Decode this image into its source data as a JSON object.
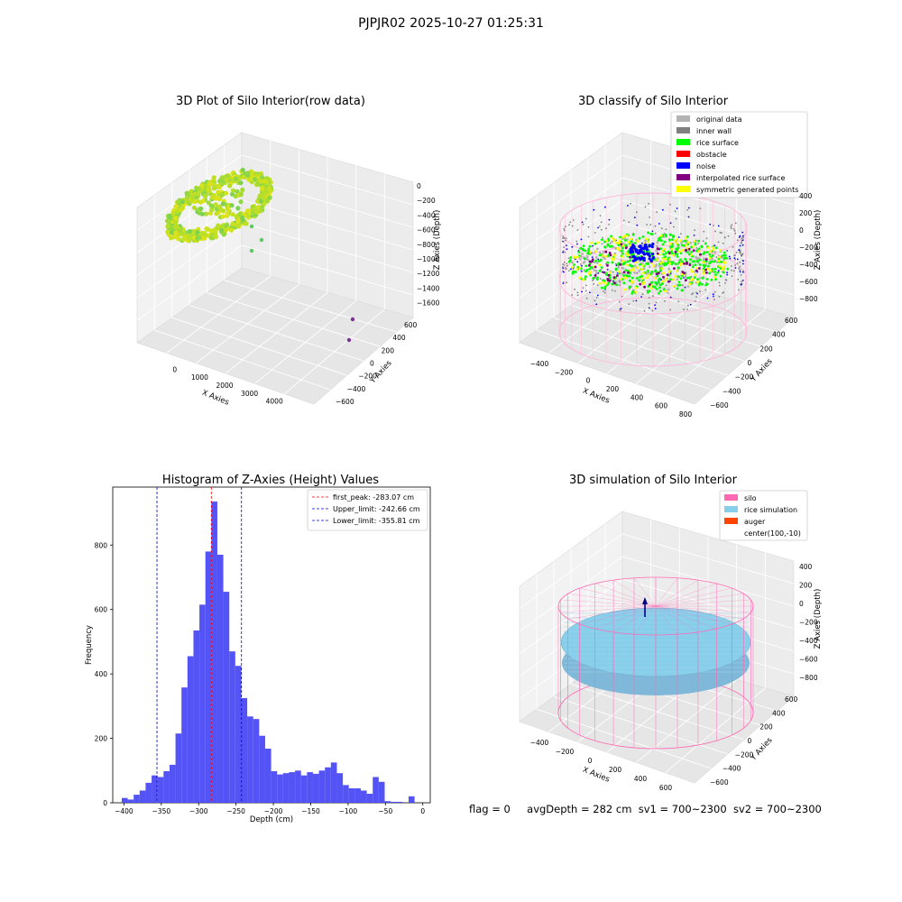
{
  "figure": {
    "suptitle": "PJPJR02 2025-10-27 01:25:31",
    "status": {
      "flag": "flag = 0",
      "avg_depth": "avgDepth = 282 cm",
      "sv1": "sv1 = 700~2300",
      "sv2": "sv2 = 700~2300"
    }
  },
  "colors": {
    "histogram_bar": "#4b4bf5",
    "first_peak_line": "#ff0000",
    "limit_line": "#0000cc",
    "grid": "#e0e0e0",
    "pane": "#f2f2f2",
    "silo": "#ff69b4",
    "rice_sim": "#87ceeb",
    "auger": "#ff4500",
    "original_data": "#b3b3b3",
    "inner_wall": "#808080",
    "rice_surface": "#00ff00",
    "obstacle": "#ff0000",
    "noise": "#0000ff",
    "interpolated": "#800080",
    "symmetric": "#ffff00"
  },
  "chart_data": [
    {
      "type": "scatter",
      "title": "3D Plot of Silo Interior(row data)",
      "xlabel": "X Axies",
      "ylabel": "Y Axies",
      "zlabel": "Z Axies (Depth)",
      "x_ticks": [
        "0",
        "1000",
        "2000",
        "3000",
        "4000"
      ],
      "y_ticks": [
        "−600",
        "−400",
        "−200",
        "0",
        "200",
        "400",
        "600"
      ],
      "z_ticks": [
        "0",
        "−200",
        "−400",
        "−600",
        "−800",
        "−1000",
        "−1200",
        "−1400",
        "−1600"
      ],
      "xlim": [
        -400,
        4300
      ],
      "ylim": [
        -700,
        700
      ],
      "zlim": [
        -1700,
        100
      ],
      "clusters": [
        {
          "name": "",
          "x_range": [
            -300,
            650
          ],
          "y_range": [
            -650,
            650
          ],
          "z_range": [
            -450,
            -150
          ],
          "colormap": "viridis-yellow"
        }
      ],
      "outliers": [
        {
          "x": 700,
          "y": 0,
          "z": -600
        },
        {
          "x": 800,
          "y": 100,
          "z": -700
        },
        {
          "x": 650,
          "y": -100,
          "z": -800
        },
        {
          "x": 4100,
          "y": 300,
          "z": -1450
        },
        {
          "x": 4100,
          "y": 150,
          "z": -1600
        }
      ]
    },
    {
      "type": "scatter",
      "title": "3D classify of Silo Interior",
      "xlabel": "X Axies",
      "ylabel": "Y Axies",
      "zlabel": "Z Axies (Depth)",
      "x_ticks": [
        "−400",
        "−200",
        "0",
        "200",
        "400",
        "600",
        "800"
      ],
      "y_ticks": [
        "−600",
        "−400",
        "−200",
        "0",
        "200",
        "400",
        "600"
      ],
      "z_ticks": [
        "−800",
        "−600",
        "−400",
        "−200",
        "0",
        "200",
        "400"
      ],
      "legend": {
        "position": "top-right",
        "entries": [
          {
            "label": "original data",
            "color": "#b3b3b3"
          },
          {
            "label": "inner wall",
            "color": "#808080"
          },
          {
            "label": "rice surface",
            "color": "#00ff00"
          },
          {
            "label": "obstacle",
            "color": "#ff0000"
          },
          {
            "label": "noise",
            "color": "#0000ff"
          },
          {
            "label": "interpolated rice surface",
            "color": "#800080"
          },
          {
            "label": "symmetric generated points",
            "color": "#ffff00"
          }
        ]
      }
    },
    {
      "type": "bar",
      "title": "Histogram of Z-Axies (Height) Values",
      "xlabel": "Depth (cm)",
      "ylabel": "Frequency",
      "xlim": [
        -415,
        10
      ],
      "ylim": [
        0,
        980
      ],
      "x_ticks": [
        "−400",
        "−350",
        "−300",
        "−250",
        "−200",
        "−150",
        "−100",
        "−50",
        "0"
      ],
      "y_ticks": [
        "0",
        "200",
        "400",
        "600",
        "800"
      ],
      "bin_start": -403,
      "bin_width": 8,
      "values": [
        15,
        10,
        25,
        38,
        62,
        85,
        80,
        98,
        118,
        215,
        358,
        455,
        535,
        615,
        780,
        935,
        770,
        655,
        470,
        425,
        325,
        268,
        260,
        208,
        168,
        98,
        88,
        92,
        95,
        100,
        85,
        95,
        90,
        100,
        110,
        125,
        92,
        55,
        45,
        45,
        38,
        28,
        80,
        65,
        5,
        3,
        3,
        0,
        20
      ],
      "bars_explicit": [
        {
          "x": 2,
          "w": 4,
          "v": 20
        }
      ],
      "lines": [
        {
          "label": "first_peak: -283.07 cm",
          "x": -283.07,
          "color": "#ff0000"
        },
        {
          "label": "Upper_limit: -242.66 cm",
          "x": -242.66,
          "color": "#0000cc"
        },
        {
          "label": "Lower_limit: -355.81 cm",
          "x": -355.81,
          "color": "#0000cc"
        }
      ],
      "legend_position": "top-right"
    },
    {
      "type": "scatter",
      "title": "3D simulation of Silo Interior",
      "xlabel": "X Axies",
      "ylabel": "Y Axies",
      "zlabel": "Z Axies (Depth)",
      "x_ticks": [
        "−400",
        "−200",
        "0",
        "200",
        "400",
        "600"
      ],
      "y_ticks": [
        "−600",
        "−400",
        "−200",
        "0",
        "200",
        "400",
        "600"
      ],
      "z_ticks": [
        "−800",
        "−600",
        "−400",
        "−200",
        "0",
        "200",
        "400"
      ],
      "legend": {
        "position": "top-right",
        "entries": [
          {
            "label": "silo",
            "color": "#ff69b4"
          },
          {
            "label": "rice simulation",
            "color": "#87ceeb"
          },
          {
            "label": "auger",
            "color": "#ff4500"
          },
          {
            "label": "center(100,-10)",
            "color": ""
          }
        ]
      }
    }
  ]
}
